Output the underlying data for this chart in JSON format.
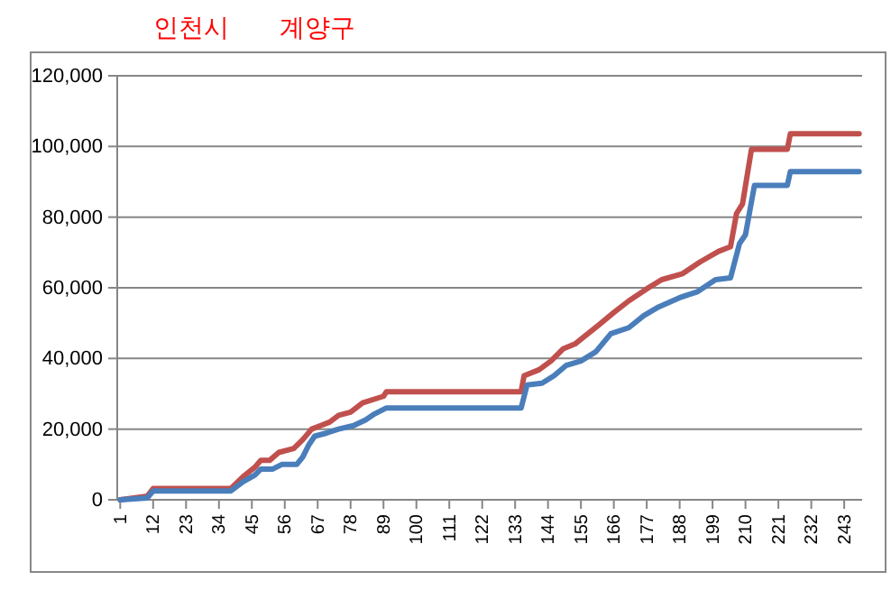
{
  "chart_data": {
    "type": "line",
    "annotations": [
      "인천시",
      "계양구"
    ],
    "series": [
      {
        "color": "#c0504d",
        "x": [
          1,
          10,
          12,
          38,
          42,
          46,
          48,
          51,
          54,
          59,
          62,
          65,
          68,
          71,
          74,
          78,
          82,
          89,
          90,
          135,
          136,
          141,
          145,
          149,
          153,
          156,
          161,
          166,
          171,
          177,
          182,
          189,
          195,
          201,
          205,
          207,
          209,
          212,
          224,
          225,
          248
        ],
        "values": [
          0,
          1000,
          3200,
          3200,
          6500,
          9200,
          11200,
          11200,
          13400,
          14500,
          17000,
          20000,
          21000,
          22000,
          23900,
          24800,
          27400,
          29300,
          30600,
          30600,
          35100,
          36800,
          39300,
          42700,
          44100,
          46100,
          49500,
          53000,
          56300,
          59700,
          62300,
          64000,
          67400,
          70300,
          71600,
          81000,
          83700,
          99200,
          99200,
          103600,
          103600
        ]
      },
      {
        "color": "#4a7ebb",
        "x": [
          1,
          10,
          12,
          38,
          42,
          46,
          48,
          52,
          55,
          60,
          62,
          64,
          66,
          70,
          74,
          79,
          83,
          86,
          90,
          135,
          137,
          142,
          146,
          150,
          155,
          160,
          165,
          171,
          176,
          181,
          188,
          194,
          200,
          205,
          208,
          210,
          213,
          224,
          225,
          248
        ],
        "values": [
          0,
          500,
          2500,
          2500,
          5100,
          7000,
          8700,
          8700,
          10000,
          10000,
          12100,
          15500,
          18000,
          18900,
          20000,
          21000,
          22600,
          24300,
          26000,
          26000,
          32500,
          33000,
          35100,
          38000,
          39300,
          41900,
          47000,
          48700,
          52100,
          54600,
          57200,
          58900,
          62300,
          62800,
          72500,
          75000,
          89000,
          89000,
          92900,
          92900
        ]
      }
    ],
    "xlim": [
      0,
      249
    ],
    "xticks": [
      1,
      12,
      23,
      34,
      45,
      56,
      67,
      78,
      89,
      100,
      111,
      122,
      133,
      144,
      155,
      166,
      177,
      188,
      199,
      210,
      221,
      232,
      243
    ],
    "ylim": [
      0,
      120000
    ],
    "yticks": [
      0,
      {
        "value": 20000,
        "label": "20,000"
      },
      {
        "value": 40000,
        "label": "40,000"
      },
      {
        "value": 60000,
        "label": "60,000"
      },
      {
        "value": 80000,
        "label": "80,000"
      },
      {
        "value": 100000,
        "label": "100,000"
      },
      {
        "value": 120000,
        "label": "120,000"
      }
    ],
    "grid": "y"
  }
}
